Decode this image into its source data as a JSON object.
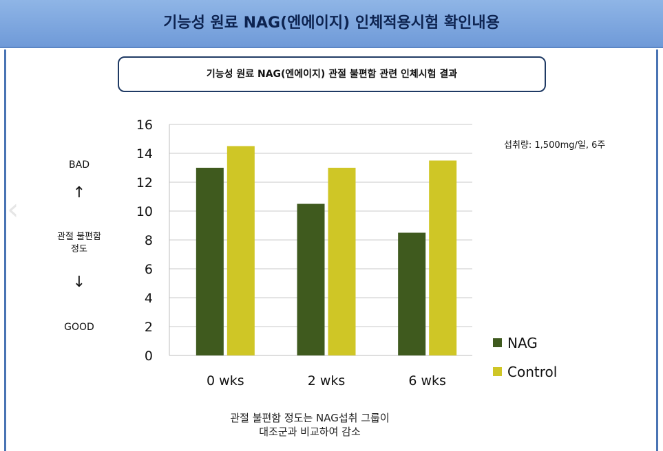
{
  "header": {
    "title": "기능성 원료 NAG(엔에이지) 인체적용시험 확인내용"
  },
  "subtitle": "기능성 원료 NAG(엔에이지) 관절 불편함 관련 인체시험 결과",
  "side_labels": {
    "bad": "BAD",
    "good": "GOOD",
    "arrow_up": "↑",
    "arrow_down": "↓",
    "axis_meaning_line1": "관절 불편함",
    "axis_meaning_line2": "정도"
  },
  "dose_note": "섭취량: 1,500mg/일, 6주",
  "footer": {
    "line1": "관절 불편함 정도는 NAG섭취 그룹이",
    "line2": "대조군과 비교하여 감소"
  },
  "colors": {
    "nag": "#3f5a1e",
    "control": "#cfc626",
    "header": "#7aa3dc"
  },
  "chart_data": {
    "type": "bar",
    "categories": [
      "0 wks",
      "2 wks",
      "6 wks"
    ],
    "series": [
      {
        "name": "NAG",
        "values": [
          13,
          10.5,
          8.5
        ]
      },
      {
        "name": "Control",
        "values": [
          14.5,
          13,
          13.5
        ]
      }
    ],
    "yticks": [
      "0",
      "2",
      "4",
      "6",
      "8",
      "10",
      "12",
      "14",
      "16"
    ],
    "ylim": [
      0,
      16
    ],
    "grid": true,
    "legend_position": "right-bottom"
  }
}
